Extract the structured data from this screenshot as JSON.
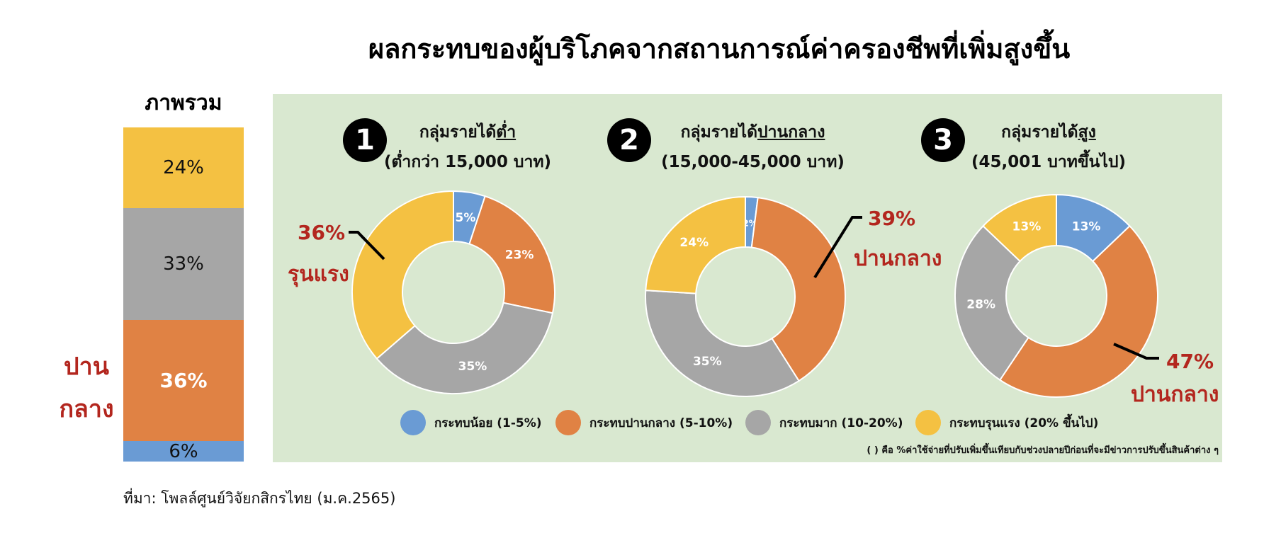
{
  "title": "ผลกระทบของผู้บริโภคจากสถานการณ์ค่าครองชีพที่เพิ่มสูงขึ้น",
  "overall": {
    "label": "ภาพรวม",
    "side_note_line1": "ปาน",
    "side_note_line2": "กลาง"
  },
  "groups": [
    {
      "badge": "1",
      "title_line1_a": "กลุ่มรายได้",
      "title_line1_b": "ต่ำ",
      "title_line2": "(ต่ำกว่า 15,000 บาท)",
      "callout_pct": "36%",
      "callout_word": "รุนแรง"
    },
    {
      "badge": "2",
      "title_line1_a": "กลุ่มรายได้",
      "title_line1_b": "ปานกลาง",
      "title_line2": "(15,000-45,000 บาท)",
      "callout_pct": "39%",
      "callout_word": "ปานกลาง"
    },
    {
      "badge": "3",
      "title_line1_a": "กลุ่มรายได้",
      "title_line1_b": "สูง",
      "title_line2": "(45,001 บาทขึ้นไป)",
      "callout_pct": "47%",
      "callout_word": "ปานกลาง"
    }
  ],
  "legend": [
    {
      "label": "กระทบน้อย (1-5%)",
      "color": "#6a9bd4"
    },
    {
      "label": "กระทบปานกลาง (5-10%)",
      "color": "#e08244"
    },
    {
      "label": "กระทบมาก (10-20%)",
      "color": "#a6a6a6"
    },
    {
      "label": "กระทบรุนแรง (20% ขึ้นไป)",
      "color": "#f4c142"
    }
  ],
  "footnote": "( ) คือ %ค่าใช้จ่ายที่ปรับเพิ่มขึ้นเทียบกับช่วงปลายปีก่อนที่จะมีข่าวการปรับขึ้นสินค้าต่าง ๆ",
  "source": "ที่มา: โพลล์ศูนย์วิจัยกสิกรไทย (ม.ค.2565)",
  "chart_data": [
    {
      "type": "bar",
      "title": "ภาพรวม",
      "categories": [
        "กระทบน้อย (1-5%)",
        "กระทบปานกลาง (5-10%)",
        "กระทบมาก (10-20%)",
        "กระทบรุนแรง (20% ขึ้นไป)"
      ],
      "values": [
        6,
        36,
        33,
        24
      ],
      "labels": [
        "6%",
        "36%",
        "33%",
        "24%"
      ],
      "stacked": true
    },
    {
      "type": "pie",
      "title": "กลุ่มรายได้ต่ำ",
      "categories": [
        "กระทบน้อย (1-5%)",
        "กระทบปานกลาง (5-10%)",
        "กระทบมาก (10-20%)",
        "กระทบรุนแรง (20% ขึ้นไป)"
      ],
      "values": [
        5,
        23,
        35,
        36
      ],
      "labels": [
        "5%",
        "23%",
        "35%",
        ""
      ]
    },
    {
      "type": "pie",
      "title": "กลุ่มรายได้ปานกลาง",
      "categories": [
        "กระทบน้อย (1-5%)",
        "กระทบปานกลาง (5-10%)",
        "กระทบมาก (10-20%)",
        "กระทบรุนแรง (20% ขึ้นไป)"
      ],
      "values": [
        2,
        39,
        35,
        24
      ],
      "labels": [
        "2%",
        "",
        "35%",
        "24%"
      ]
    },
    {
      "type": "pie",
      "title": "กลุ่มรายได้สูง",
      "categories": [
        "กระทบน้อย (1-5%)",
        "กระทบปานกลาง (5-10%)",
        "กระทบมาก (10-20%)",
        "กระทบรุนแรง (20% ขึ้นไป)"
      ],
      "values": [
        13,
        47,
        28,
        13
      ],
      "labels": [
        "13%",
        "",
        "28%",
        "13%"
      ]
    }
  ]
}
